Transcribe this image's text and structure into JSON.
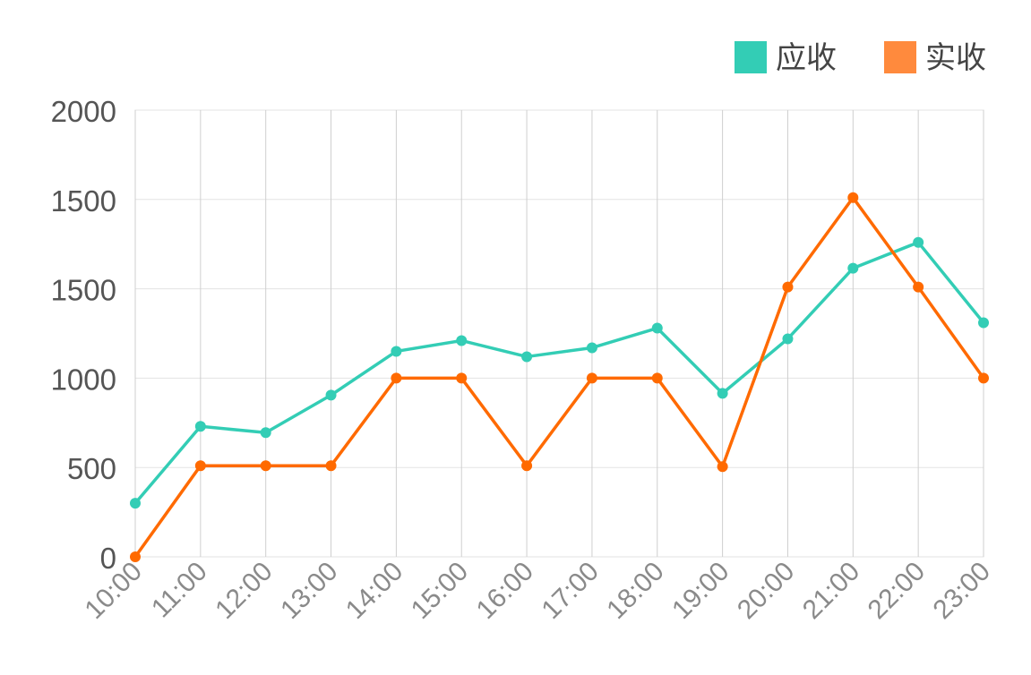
{
  "chart_data": {
    "type": "line",
    "categories": [
      "10:00",
      "11:00",
      "12:00",
      "13:00",
      "14:00",
      "15:00",
      "16:00",
      "17:00",
      "18:00",
      "19:00",
      "20:00",
      "21:00",
      "22:00",
      "23:00"
    ],
    "series": [
      {
        "name": "应收",
        "color": "#33cdb5",
        "values": [
          300,
          730,
          695,
          905,
          1150,
          1210,
          1120,
          1170,
          1280,
          915,
          1220,
          1615,
          1760,
          1310
        ]
      },
      {
        "name": "实收",
        "color": "#ff6a00",
        "values": [
          0,
          510,
          510,
          510,
          1000,
          1000,
          510,
          1000,
          1000,
          505,
          1510,
          2010,
          1510,
          1000
        ]
      }
    ],
    "legend": [
      {
        "label": "应收",
        "color": "#33cdb5"
      },
      {
        "label": "实收",
        "color": "#ff8a3d"
      }
    ],
    "y_tick_labels": [
      "2000",
      "1500",
      "1500",
      "1000",
      "500",
      "0"
    ],
    "ylim": [
      0,
      2500
    ],
    "grid": true,
    "legend_position": "top-right",
    "title": "",
    "xlabel": "",
    "ylabel": ""
  }
}
